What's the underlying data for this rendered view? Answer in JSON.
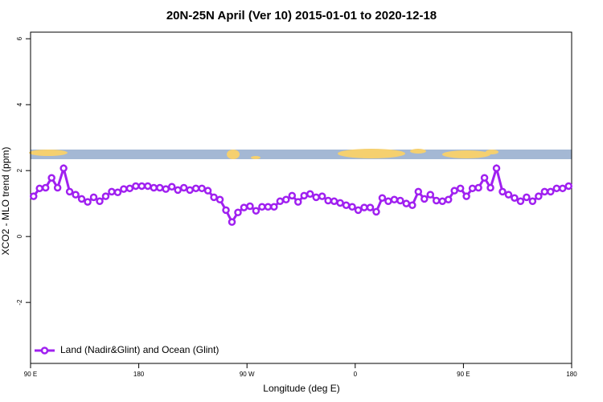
{
  "chart_data": {
    "type": "line",
    "title": "20N-25N April (Ver 10)   2015-01-01 to 2020-12-18",
    "x_label": "Longitude (deg E)",
    "y_label": "XCO2 - MLO trend (ppm)",
    "x": [
      92.5,
      97.5,
      102.5,
      107.5,
      112.5,
      117.5,
      122.5,
      127.5,
      132.5,
      137.5,
      142.5,
      147.5,
      152.5,
      157.5,
      162.5,
      167.5,
      172.5,
      177.5,
      182.5,
      187.5,
      192.5,
      197.5,
      202.5,
      207.5,
      212.5,
      217.5,
      222.5,
      227.5,
      232.5,
      237.5,
      242.5,
      247.5,
      252.5,
      257.5,
      262.5,
      267.5,
      272.5,
      277.5,
      282.5,
      287.5,
      292.5,
      297.5,
      302.5,
      307.5,
      312.5,
      317.5,
      322.5,
      327.5,
      332.5,
      337.5,
      342.5,
      347.5,
      352.5,
      357.5,
      362.5,
      367.5,
      372.5,
      377.5,
      382.5,
      387.5,
      392.5,
      397.5,
      402.5,
      407.5,
      412.5,
      417.5,
      422.5,
      427.5,
      432.5,
      437.5,
      442.5,
      447.5,
      452.5,
      457.5,
      462.5,
      467.5,
      472.5,
      477.5,
      482.5,
      487.5,
      492.5,
      497.5,
      502.5,
      507.5,
      512.5,
      517.5,
      522.5,
      527.5,
      532.5,
      537.5
    ],
    "series": [
      {
        "name": "Land (Nadir&Glint) and Ocean (Glint)",
        "color": "#a020f0",
        "values": [
          1.22,
          1.46,
          1.48,
          1.78,
          1.48,
          2.07,
          1.36,
          1.27,
          1.14,
          1.05,
          1.19,
          1.07,
          1.22,
          1.36,
          1.34,
          1.44,
          1.46,
          1.53,
          1.53,
          1.53,
          1.48,
          1.48,
          1.44,
          1.51,
          1.41,
          1.48,
          1.41,
          1.46,
          1.46,
          1.39,
          1.19,
          1.12,
          0.8,
          0.44,
          0.73,
          0.88,
          0.92,
          0.78,
          0.9,
          0.9,
          0.9,
          1.07,
          1.12,
          1.24,
          1.05,
          1.24,
          1.29,
          1.19,
          1.22,
          1.09,
          1.07,
          1.02,
          0.95,
          0.9,
          0.8,
          0.88,
          0.88,
          0.75,
          1.17,
          1.07,
          1.12,
          1.09,
          1.0,
          0.95,
          1.36,
          1.14,
          1.27,
          1.09,
          1.07,
          1.12,
          1.39,
          1.46,
          1.22,
          1.46,
          1.48,
          1.78,
          1.48,
          2.07,
          1.36,
          1.27,
          1.17,
          1.07,
          1.19,
          1.07,
          1.22,
          1.36,
          1.36,
          1.46,
          1.46,
          1.53
        ]
      }
    ],
    "xlim": [
      90,
      540
    ],
    "xticks": [
      {
        "value": 90,
        "label": "90 E"
      },
      180,
      {
        "value": 270,
        "label": "90 W"
      },
      {
        "value": 360,
        "label": "0"
      },
      {
        "value": 450,
        "label": "90 E"
      },
      {
        "value": 540,
        "label": "180"
      }
    ],
    "ylim": [
      -3.85,
      6.2
    ],
    "yticks": [
      -2,
      0,
      2,
      4,
      6
    ],
    "legend": "bottom-left"
  }
}
